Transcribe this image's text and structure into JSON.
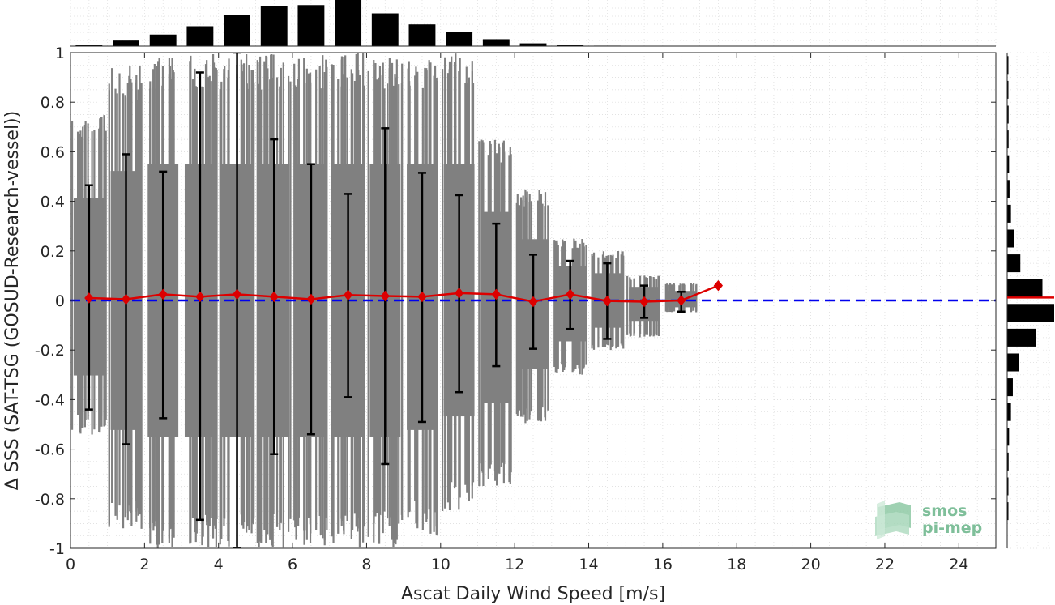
{
  "chart_data": {
    "type": "scatter",
    "xlabel": "Ascat Daily Wind Speed [m/s]",
    "ylabel": "Δ SSS (SAT-TSG (GOSUD-Research-vessel))",
    "xlim": [
      0,
      25
    ],
    "ylim": [
      -1,
      1
    ],
    "x_ticks": [
      0,
      2,
      4,
      6,
      8,
      10,
      12,
      14,
      16,
      18,
      20,
      22,
      24
    ],
    "y_ticks": [
      -1,
      -0.8,
      -0.6,
      -0.4,
      -0.2,
      0,
      0.2,
      0.4,
      0.6,
      0.8,
      1
    ],
    "x_tick_labels": [
      "0",
      "2",
      "4",
      "6",
      "8",
      "10",
      "12",
      "14",
      "16",
      "18",
      "20",
      "22",
      "24"
    ],
    "y_tick_labels": [
      "-1",
      "-0.8",
      "-0.6",
      "-0.4",
      "-0.2",
      "0",
      "0.2",
      "0.4",
      "0.6",
      "0.8",
      "1"
    ],
    "grid": true,
    "zero_line": {
      "y": 0,
      "color": "#0000ee",
      "style": "dashed"
    },
    "scatter_color": "#808080",
    "scatter_columns": [
      {
        "x": 0.5,
        "y_min": -0.55,
        "y_max": 0.75
      },
      {
        "x": 1.5,
        "y_min": -0.95,
        "y_max": 0.95
      },
      {
        "x": 2.5,
        "y_min": -1.0,
        "y_max": 1.0
      },
      {
        "x": 3.5,
        "y_min": -1.0,
        "y_max": 1.0
      },
      {
        "x": 4.5,
        "y_min": -1.0,
        "y_max": 1.0
      },
      {
        "x": 5.5,
        "y_min": -1.0,
        "y_max": 1.0
      },
      {
        "x": 6.5,
        "y_min": -1.0,
        "y_max": 1.0
      },
      {
        "x": 7.5,
        "y_min": -1.0,
        "y_max": 1.0
      },
      {
        "x": 8.5,
        "y_min": -1.0,
        "y_max": 1.0
      },
      {
        "x": 9.5,
        "y_min": -0.95,
        "y_max": 1.0
      },
      {
        "x": 10.5,
        "y_min": -0.85,
        "y_max": 1.0
      },
      {
        "x": 11.5,
        "y_min": -0.75,
        "y_max": 0.65
      },
      {
        "x": 12.5,
        "y_min": -0.5,
        "y_max": 0.45
      },
      {
        "x": 13.5,
        "y_min": -0.3,
        "y_max": 0.25
      },
      {
        "x": 14.5,
        "y_min": -0.2,
        "y_max": 0.2
      },
      {
        "x": 15.5,
        "y_min": -0.15,
        "y_max": 0.1
      },
      {
        "x": 16.5,
        "y_min": -0.05,
        "y_max": 0.07
      }
    ],
    "series": [
      {
        "color": "#dd0000",
        "x": [
          0.5,
          1.5,
          2.5,
          3.5,
          4.5,
          5.5,
          6.5,
          7.5,
          8.5,
          9.5,
          10.5,
          11.5,
          12.5,
          13.5,
          14.5,
          15.5,
          16.5,
          17.5
        ],
        "y": [
          0.01,
          0.005,
          0.025,
          0.015,
          0.025,
          0.015,
          0.005,
          0.022,
          0.018,
          0.015,
          0.03,
          0.025,
          -0.005,
          0.025,
          -0.002,
          -0.005,
          0.0,
          0.06
        ],
        "err_lo": [
          -0.44,
          -0.58,
          -0.475,
          -0.885,
          -1.0,
          -0.62,
          -0.54,
          -0.39,
          -0.66,
          -0.49,
          -0.37,
          -0.265,
          -0.195,
          -0.115,
          -0.155,
          -0.07,
          -0.045,
          0.06
        ],
        "err_hi": [
          0.465,
          0.59,
          0.52,
          0.92,
          1.0,
          0.65,
          0.55,
          0.43,
          0.695,
          0.515,
          0.425,
          0.31,
          0.185,
          0.16,
          0.15,
          0.06,
          0.035,
          0.06
        ]
      }
    ],
    "top_histogram": {
      "bin_centers": [
        0.5,
        1.5,
        2.5,
        3.5,
        4.5,
        5.5,
        6.5,
        7.5,
        8.5,
        9.5,
        10.5,
        11.5,
        12.5,
        13.5,
        14.5,
        15.5,
        16.5
      ],
      "counts": [
        0.03,
        0.12,
        0.25,
        0.43,
        0.68,
        0.87,
        0.89,
        1.0,
        0.71,
        0.47,
        0.31,
        0.15,
        0.06,
        0.025,
        0.01,
        0.005,
        0.003
      ]
    },
    "right_histogram": {
      "bin_centers": [
        -0.95,
        -0.85,
        -0.75,
        -0.65,
        -0.55,
        -0.45,
        -0.35,
        -0.25,
        -0.15,
        -0.05,
        0.05,
        0.15,
        0.25,
        0.35,
        0.45,
        0.55,
        0.65,
        0.75,
        0.85,
        0.95
      ],
      "counts": [
        0.0,
        0.01,
        0.02,
        0.03,
        0.04,
        0.08,
        0.12,
        0.25,
        0.62,
        1.0,
        0.75,
        0.28,
        0.14,
        0.08,
        0.05,
        0.04,
        0.03,
        0.03,
        0.02,
        0.02
      ],
      "median_line": {
        "y": 0.012,
        "color": "#dd0000"
      }
    }
  },
  "logo": {
    "line1": "smos",
    "line2": "pi-mep",
    "color": "#7fbf9a"
  }
}
